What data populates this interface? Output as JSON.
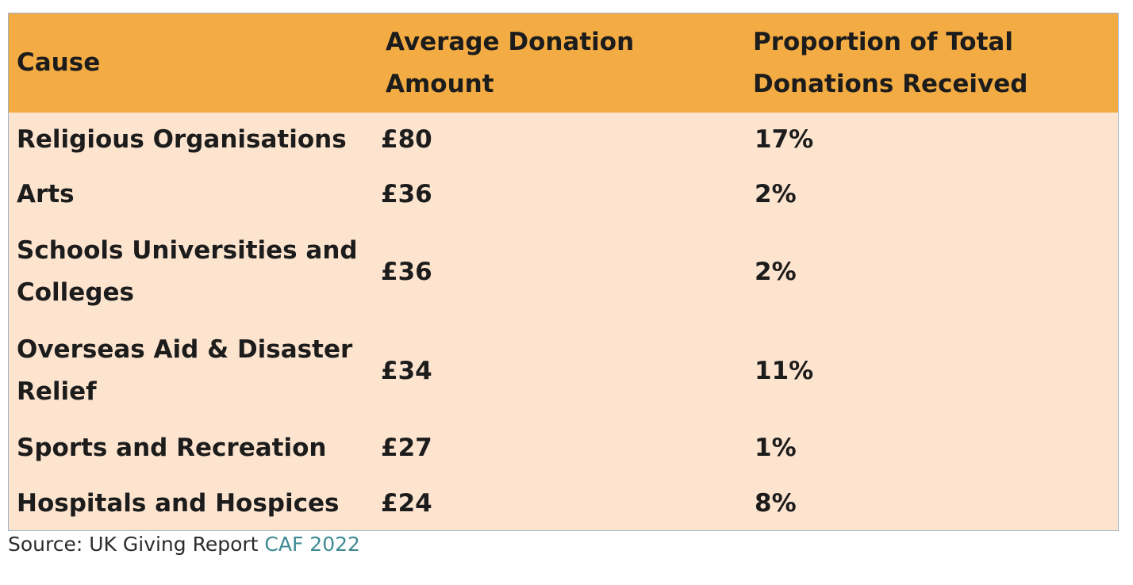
{
  "table": {
    "headers": [
      "Cause",
      "Average Donation Amount",
      "Proportion of Total Donations Received"
    ],
    "rows": [
      {
        "cause": "Religious Organisations",
        "amount": "£80",
        "proportion": "17%"
      },
      {
        "cause": "Arts",
        "amount": "£36",
        "proportion": "2%"
      },
      {
        "cause": "Schools Universities and Colleges",
        "amount": "£36",
        "proportion": "2%"
      },
      {
        "cause": "Overseas Aid & Disaster Relief",
        "amount": "£34",
        "proportion": "11%"
      },
      {
        "cause": "Sports and Recreation",
        "amount": "£27",
        "proportion": "1%"
      },
      {
        "cause": "Hospitals and Hospices",
        "amount": "£24",
        "proportion": "8%"
      }
    ]
  },
  "source": {
    "prefix": "Source: UK Giving Report ",
    "link_text": "CAF 2022"
  },
  "colors": {
    "header_bg": "#f3ab43",
    "body_bg": "#fde4cf",
    "border": "#9fb3c6",
    "link": "#3f8a92"
  }
}
